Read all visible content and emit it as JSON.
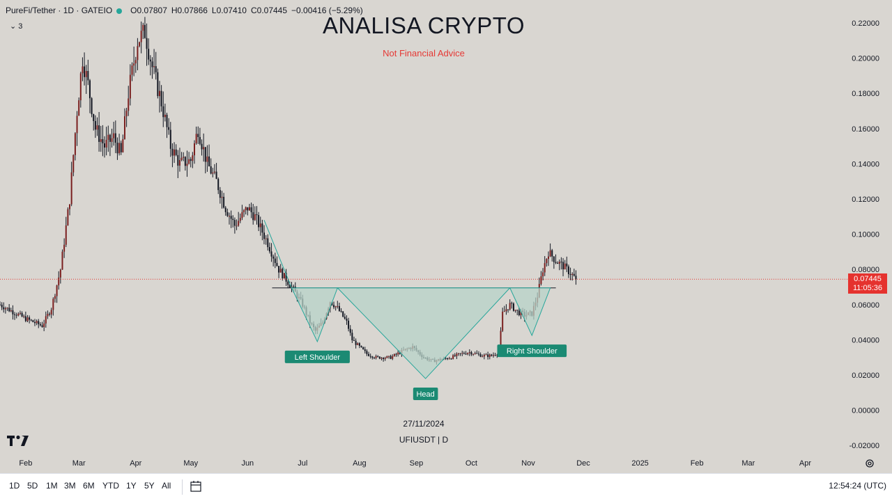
{
  "legend": {
    "symbol": "PureFi/Tether · 1D · GATEIO",
    "open": "O0.07807",
    "high": "H0.07866",
    "low": "L0.07410",
    "close": "C0.07445",
    "change": "−0.00416 (−5.29%)",
    "indicators_count": "3",
    "status_color": "#26a69a"
  },
  "title": "ANALISA CRYPTO",
  "subtitle": "Not Financial Advice",
  "watermark": {
    "date": "27/11/2024",
    "symbol": "UFIUSDT | D"
  },
  "price_label": {
    "price": "0.07445",
    "countdown": "11:05:36",
    "color": "#e5322e"
  },
  "bottom_bar": {
    "ranges": [
      "1D",
      "5D",
      "1M",
      "3M",
      "6M",
      "YTD",
      "1Y",
      "5Y",
      "All"
    ],
    "clock": "12:54:24 (UTC)"
  },
  "colors": {
    "up": "#7a1f1f",
    "down": "#131722",
    "pattern_fill": "#b7d3c8",
    "pattern_stroke": "#26a69a",
    "label_bg": "#1b8a73"
  },
  "chart_data": {
    "type": "candlestick",
    "y_axis": {
      "ticks": [
        "0.22000",
        "0.20000",
        "0.18000",
        "0.16000",
        "0.14000",
        "0.12000",
        "0.10000",
        "0.08000",
        "0.06000",
        "0.04000",
        "0.02000",
        "0.00000",
        "-0.02000"
      ],
      "ylim": [
        -0.02,
        0.22
      ],
      "position": "right"
    },
    "x_axis": {
      "ticks": [
        "Feb",
        "Mar",
        "Apr",
        "May",
        "Jun",
        "Jul",
        "Aug",
        "Sep",
        "Oct",
        "Nov",
        "Dec",
        "2025",
        "Feb",
        "Mar",
        "Apr"
      ],
      "tick_dates": [
        "2024-02-01",
        "2024-03-01",
        "2024-04-01",
        "2024-05-01",
        "2024-06-01",
        "2024-07-01",
        "2024-08-01",
        "2024-09-01",
        "2024-10-01",
        "2024-11-01",
        "2024-12-01",
        "2025-01-01",
        "2025-02-01",
        "2025-03-01",
        "2025-04-01"
      ],
      "xlim": [
        "2024-01-18",
        "2025-04-24"
      ]
    },
    "price_path": [
      [
        "2024-01-18",
        0.06
      ],
      [
        "2024-02-01",
        0.052
      ],
      [
        "2024-02-10",
        0.048
      ],
      [
        "2024-02-15",
        0.058
      ],
      [
        "2024-02-20",
        0.08
      ],
      [
        "2024-02-25",
        0.12
      ],
      [
        "2024-02-29",
        0.17
      ],
      [
        "2024-03-03",
        0.2
      ],
      [
        "2024-03-06",
        0.185
      ],
      [
        "2024-03-10",
        0.16
      ],
      [
        "2024-03-15",
        0.15
      ],
      [
        "2024-03-20",
        0.155
      ],
      [
        "2024-03-24",
        0.145
      ],
      [
        "2024-03-28",
        0.18
      ],
      [
        "2024-04-02",
        0.21
      ],
      [
        "2024-04-06",
        0.215
      ],
      [
        "2024-04-10",
        0.195
      ],
      [
        "2024-04-15",
        0.175
      ],
      [
        "2024-04-20",
        0.15
      ],
      [
        "2024-04-25",
        0.14
      ],
      [
        "2024-05-01",
        0.142
      ],
      [
        "2024-05-05",
        0.16
      ],
      [
        "2024-05-10",
        0.14
      ],
      [
        "2024-05-15",
        0.13
      ],
      [
        "2024-05-20",
        0.115
      ],
      [
        "2024-05-25",
        0.105
      ],
      [
        "2024-06-01",
        0.115
      ],
      [
        "2024-06-05",
        0.11
      ],
      [
        "2024-06-12",
        0.095
      ],
      [
        "2024-06-18",
        0.08
      ],
      [
        "2024-06-25",
        0.07
      ],
      [
        "2024-07-01",
        0.06
      ],
      [
        "2024-07-05",
        0.05
      ],
      [
        "2024-07-08",
        0.045
      ],
      [
        "2024-07-12",
        0.05
      ],
      [
        "2024-07-16",
        0.062
      ],
      [
        "2024-07-20",
        0.058
      ],
      [
        "2024-07-25",
        0.05
      ],
      [
        "2024-07-28",
        0.04
      ],
      [
        "2024-08-05",
        0.032
      ],
      [
        "2024-08-10",
        0.03
      ],
      [
        "2024-08-18",
        0.03
      ],
      [
        "2024-08-25",
        0.034
      ],
      [
        "2024-08-30",
        0.036
      ],
      [
        "2024-09-05",
        0.03
      ],
      [
        "2024-09-10",
        0.028
      ],
      [
        "2024-09-15",
        0.029
      ],
      [
        "2024-09-20",
        0.03
      ],
      [
        "2024-09-25",
        0.032
      ],
      [
        "2024-09-30",
        0.033
      ],
      [
        "2024-10-07",
        0.031
      ],
      [
        "2024-10-12",
        0.031
      ],
      [
        "2024-10-16",
        0.033
      ],
      [
        "2024-10-18",
        0.055
      ],
      [
        "2024-10-22",
        0.06
      ],
      [
        "2024-10-26",
        0.056
      ],
      [
        "2024-10-30",
        0.054
      ],
      [
        "2024-11-03",
        0.055
      ],
      [
        "2024-11-06",
        0.065
      ],
      [
        "2024-11-09",
        0.08
      ],
      [
        "2024-11-12",
        0.09
      ],
      [
        "2024-11-16",
        0.085
      ],
      [
        "2024-11-20",
        0.082
      ],
      [
        "2024-11-24",
        0.078
      ],
      [
        "2024-11-27",
        0.0745
      ]
    ],
    "last_price": 0.07445,
    "neckline": 0.0695,
    "pattern": {
      "name": "inverse head and shoulders",
      "outline": [
        [
          "2024-06-10",
          0.108
        ],
        [
          "2024-06-25",
          0.0695
        ],
        [
          "2024-07-09",
          0.039
        ],
        [
          "2024-07-20",
          0.0695
        ],
        [
          "2024-09-06",
          0.018
        ],
        [
          "2024-10-22",
          0.0695
        ],
        [
          "2024-11-03",
          0.0425
        ],
        [
          "2024-11-13",
          0.0695
        ]
      ],
      "labels": [
        {
          "text": "Left Shoulder",
          "date": "2024-07-09",
          "value": 0.039
        },
        {
          "text": "Head",
          "date": "2024-09-06",
          "value": 0.018
        },
        {
          "text": "Right Shoulder",
          "date": "2024-11-03",
          "value": 0.0425
        }
      ]
    }
  }
}
